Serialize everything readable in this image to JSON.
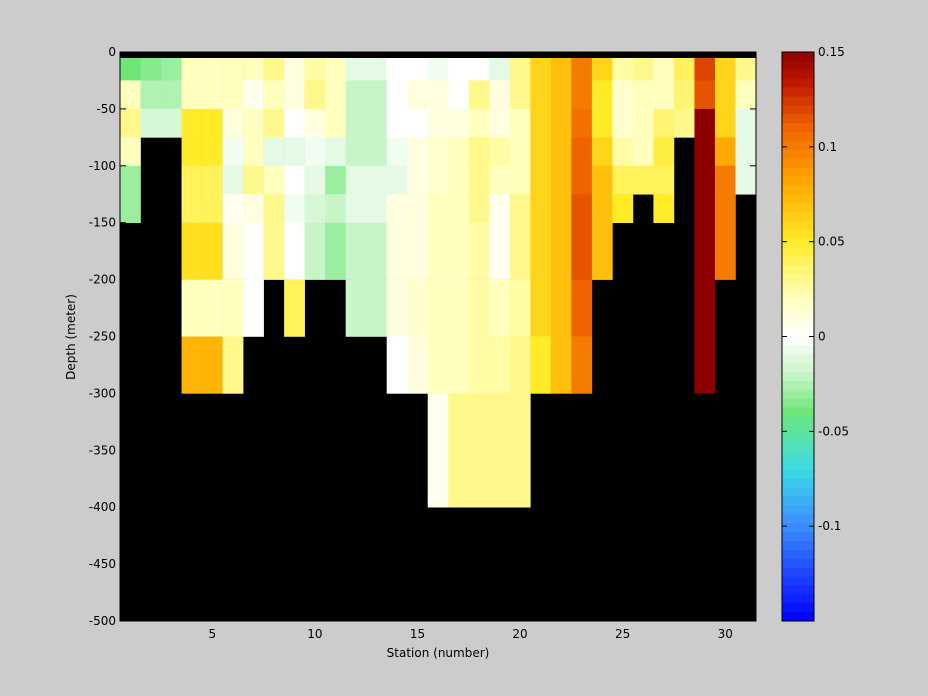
{
  "chart_data": {
    "type": "heatmap",
    "title": "",
    "xlabel": "Station (number)",
    "ylabel": "Depth (meter)",
    "xlim": [
      1,
      31
    ],
    "ylim": [
      -500,
      0
    ],
    "x_ticks": [
      5,
      10,
      15,
      20,
      25,
      30
    ],
    "y_ticks": [
      0,
      -50,
      -100,
      -150,
      -200,
      -250,
      -300,
      -350,
      -400,
      -450,
      -500
    ],
    "colorbar": {
      "range": [
        -0.15,
        0.15
      ],
      "ticks": [
        0.15,
        0.1,
        0.05,
        0,
        -0.05,
        -0.1
      ],
      "tick_labels": [
        "0.15",
        "0.1",
        "0.05",
        "0",
        "-0.05",
        "-0.1"
      ],
      "colormap": "blue-cyan-green-white-yellow-orange-darkred"
    },
    "no_data_color": "#000000",
    "depth_levels": [
      0,
      -5,
      -25,
      -50,
      -75,
      -100,
      -125,
      -150,
      -200,
      -250,
      -300,
      -400,
      -500
    ],
    "stations": [
      {
        "station": 1,
        "values": [
          -0.05,
          -0.04,
          0.02,
          0.03,
          0.02,
          -0.03,
          -0.03
        ]
      },
      {
        "station": 2,
        "values": [
          -0.035,
          -0.035,
          -0.025,
          -0.015
        ]
      },
      {
        "station": 3,
        "values": [
          -0.03,
          -0.03,
          -0.025,
          -0.015
        ]
      },
      {
        "station": 4,
        "values": [
          0.03,
          0.02,
          0.02,
          0.05,
          0.05,
          0.04,
          0.04,
          0.055,
          0.02,
          0.075
        ]
      },
      {
        "station": 5,
        "values": [
          0.03,
          0.02,
          0.02,
          0.05,
          0.05,
          0.04,
          0.04,
          0.055,
          0.02,
          0.075
        ]
      },
      {
        "station": 6,
        "values": [
          0.04,
          0.02,
          0.02,
          0.01,
          -0.005,
          -0.01,
          0.005,
          0.01,
          0.02,
          0.03
        ]
      },
      {
        "station": 7,
        "values": [
          0.05,
          0.02,
          0.005,
          0.02,
          0.02,
          0.03,
          0.01,
          0.0,
          0.0
        ]
      },
      {
        "station": 8,
        "values": [
          0.06,
          0.03,
          0.02,
          0.03,
          -0.01,
          0.02,
          0.03,
          0.03
        ]
      },
      {
        "station": 9,
        "values": [
          0.05,
          0.01,
          0.01,
          0.0,
          -0.01,
          0.0,
          -0.005,
          0.0,
          0.04
        ]
      },
      {
        "station": 10,
        "values": [
          0.05,
          0.025,
          0.03,
          0.01,
          -0.005,
          -0.01,
          -0.015,
          -0.02
        ]
      },
      {
        "station": 11,
        "values": [
          0.05,
          0.02,
          0.02,
          0.02,
          -0.01,
          -0.03,
          -0.02,
          -0.03
        ]
      },
      {
        "station": 12,
        "values": [
          0.03,
          -0.01,
          -0.02,
          -0.02,
          -0.02,
          -0.01,
          -0.01,
          -0.02,
          -0.02
        ]
      },
      {
        "station": 13,
        "values": [
          0.03,
          -0.01,
          -0.02,
          -0.02,
          -0.02,
          -0.01,
          -0.01,
          -0.02,
          -0.02
        ]
      },
      {
        "station": 14,
        "values": [
          0.03,
          0.0,
          0.0,
          0.0,
          -0.005,
          -0.01,
          0.01,
          0.01,
          0.01,
          0.0
        ]
      },
      {
        "station": 15,
        "values": [
          0.03,
          0.0,
          0.01,
          0.0,
          0.01,
          0.01,
          0.01,
          0.01,
          0.015,
          0.01
        ]
      },
      {
        "station": 16,
        "values": [
          0.03,
          -0.005,
          0.01,
          0.01,
          0.015,
          0.015,
          0.02,
          0.02,
          0.02,
          0.02,
          0.005
        ]
      },
      {
        "station": 17,
        "values": [
          0.03,
          0.0,
          0.0,
          0.01,
          0.02,
          0.02,
          0.02,
          0.02,
          0.02,
          0.02,
          0.03
        ]
      },
      {
        "station": 18,
        "values": [
          0.03,
          0.0,
          0.03,
          0.02,
          0.03,
          0.03,
          0.03,
          0.025,
          0.025,
          0.025,
          0.03
        ]
      },
      {
        "station": 19,
        "values": [
          0.03,
          -0.01,
          0.01,
          0.01,
          0.025,
          0.02,
          0.005,
          0.005,
          0.02,
          0.025,
          0.03
        ]
      },
      {
        "station": 20,
        "values": [
          0.04,
          0.03,
          0.03,
          0.02,
          0.02,
          0.02,
          0.03,
          0.03,
          0.025,
          0.03,
          0.03
        ]
      },
      {
        "station": 21,
        "values": [
          0.06,
          0.06,
          0.06,
          0.06,
          0.06,
          0.06,
          0.06,
          0.06,
          0.06,
          0.05
        ]
      },
      {
        "station": 22,
        "values": [
          0.11,
          0.07,
          0.07,
          0.07,
          0.07,
          0.07,
          0.07,
          0.07,
          0.07,
          0.07
        ]
      },
      {
        "station": 23,
        "values": [
          0.135,
          0.1,
          0.1,
          0.105,
          0.11,
          0.11,
          0.115,
          0.115,
          0.11,
          0.1
        ]
      },
      {
        "station": 24,
        "values": [
          0.1,
          0.06,
          0.05,
          0.05,
          0.06,
          0.07,
          0.07,
          0.07
        ]
      },
      {
        "station": 25,
        "values": [
          0.04,
          0.025,
          0.015,
          0.015,
          0.025,
          0.04,
          0.05
        ]
      },
      {
        "station": 26,
        "values": [
          0.04,
          0.03,
          0.02,
          0.02,
          0.02,
          0.04
        ]
      },
      {
        "station": 27,
        "values": [
          0.04,
          0.02,
          0.02,
          0.035,
          0.045,
          0.04,
          0.05
        ]
      },
      {
        "station": 28,
        "values": [
          0.06,
          0.04,
          0.035,
          0.03
        ]
      },
      {
        "station": 29,
        "values": [
          0.13,
          0.12,
          0.115,
          0.15,
          0.15,
          0.15,
          0.15,
          0.15,
          0.15,
          0.15
        ]
      },
      {
        "station": 30,
        "values": [
          0.1,
          0.06,
          0.06,
          0.06,
          0.08,
          0.1,
          0.1,
          0.1
        ]
      },
      {
        "station": 31,
        "values": [
          0.03,
          0.03,
          0.02,
          -0.01,
          -0.01,
          -0.01
        ]
      }
    ]
  }
}
